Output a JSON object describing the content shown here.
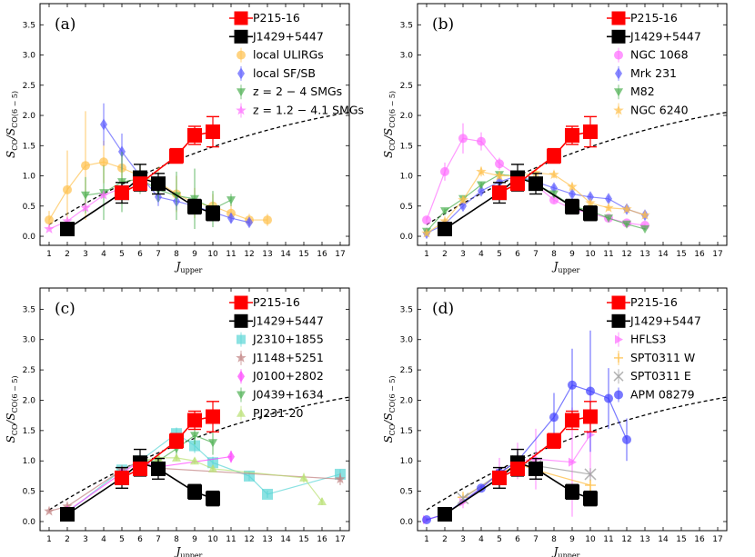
{
  "figure": {
    "xlabel": "J",
    "xlabel_sub": "upper",
    "ylabel": "S",
    "ylabel_sub": "CO",
    "ylabel_mid": "/S",
    "ylabel_sub2": "CO(6 − 5)"
  },
  "chart_data": [
    {
      "type": "line",
      "panel_label": "(a)",
      "xlim": [
        0.5,
        17.5
      ],
      "ylim": [
        -0.15,
        3.85
      ],
      "xticks": [
        1,
        2,
        3,
        4,
        5,
        6,
        7,
        8,
        9,
        10,
        11,
        12,
        13,
        14,
        15,
        16,
        17
      ],
      "yticks": [
        0.0,
        0.5,
        1.0,
        1.5,
        2.0,
        2.5,
        3.0,
        3.5
      ],
      "model_curve": {
        "name": "thermalized",
        "style": "dashed"
      },
      "series": [
        {
          "name": "P215-16",
          "marker": "square",
          "color": "#ff0000",
          "size": 8,
          "line": true,
          "x": [
            5,
            6,
            8,
            9,
            10
          ],
          "y": [
            0.72,
            0.87,
            1.33,
            1.67,
            1.73
          ],
          "err": [
            0.1,
            0.08,
            0.12,
            0.15,
            0.25
          ]
        },
        {
          "name": "J1429+5447",
          "marker": "square",
          "color": "#000000",
          "size": 8,
          "line": true,
          "x": [
            2,
            5,
            6,
            7,
            9,
            10
          ],
          "y": [
            0.12,
            0.72,
            0.97,
            0.87,
            0.49,
            0.38
          ],
          "err": [
            0.05,
            0.17,
            0.22,
            0.17,
            0.12,
            0.12
          ]
        },
        {
          "name": "local ULIRGs",
          "marker": "circle",
          "color": "#ffc04c",
          "size": 5,
          "alpha": 0.7,
          "line": true,
          "x": [
            1,
            2,
            3,
            4,
            5,
            6,
            7,
            8,
            9,
            10,
            11,
            12,
            13
          ],
          "y": [
            0.27,
            0.77,
            1.17,
            1.23,
            1.13,
            1.0,
            0.9,
            0.7,
            0.55,
            0.5,
            0.38,
            0.27,
            0.27
          ],
          "err": [
            0.15,
            0.65,
            0.9,
            0.35,
            0.25,
            0.15,
            0.25,
            0.3,
            0.25,
            0.2,
            0.15,
            0.1,
            0.1
          ]
        },
        {
          "name": "local SF/SB",
          "marker": "diamond",
          "color": "#5a5aff",
          "size": 5,
          "alpha": 0.7,
          "line": true,
          "x": [
            4,
            5,
            6,
            7,
            8,
            9,
            10,
            11,
            12
          ],
          "y": [
            1.85,
            1.4,
            1.0,
            0.65,
            0.58,
            0.5,
            0.4,
            0.3,
            0.23
          ],
          "err": [
            0.35,
            0.3,
            0.1,
            0.15,
            0.15,
            0.1,
            0.1,
            0.08,
            0.06
          ]
        },
        {
          "name": "z = 2 − 4 SMGs",
          "marker": "triangle-down",
          "color": "#4caf50",
          "size": 5,
          "alpha": 0.7,
          "line": true,
          "x": [
            3,
            4,
            5,
            6,
            7,
            8,
            9,
            10,
            11
          ],
          "y": [
            0.68,
            0.72,
            0.9,
            0.95,
            0.77,
            0.67,
            0.62,
            0.45,
            0.6
          ],
          "err": [
            0.3,
            0.45,
            0.5,
            0.25,
            0.2,
            0.4,
            0.5,
            0.3,
            0.1
          ]
        },
        {
          "name": "z = 1.2 − 4.1 SMGs",
          "marker": "star",
          "color": "#ff6cff",
          "size": 5,
          "alpha": 0.7,
          "line": true,
          "x": [
            1,
            2,
            3,
            4,
            5
          ],
          "y": [
            0.12,
            0.25,
            0.47,
            0.68,
            0.8
          ],
          "err": [
            0,
            0,
            0,
            0,
            0
          ]
        }
      ]
    },
    {
      "type": "line",
      "panel_label": "(b)",
      "xlim": [
        0.5,
        17.5
      ],
      "ylim": [
        -0.15,
        3.85
      ],
      "xticks": [
        1,
        2,
        3,
        4,
        5,
        6,
        7,
        8,
        9,
        10,
        11,
        12,
        13,
        14,
        15,
        16,
        17
      ],
      "yticks": [
        0.0,
        0.5,
        1.0,
        1.5,
        2.0,
        2.5,
        3.0,
        3.5
      ],
      "model_curve": {
        "name": "thermalized",
        "style": "dashed"
      },
      "series": [
        {
          "name": "P215-16",
          "marker": "square",
          "color": "#ff0000",
          "size": 8,
          "line": true,
          "x": [
            5,
            6,
            8,
            9,
            10
          ],
          "y": [
            0.72,
            0.87,
            1.33,
            1.67,
            1.73
          ],
          "err": [
            0.1,
            0.08,
            0.12,
            0.15,
            0.25
          ]
        },
        {
          "name": "J1429+5447",
          "marker": "square",
          "color": "#000000",
          "size": 8,
          "line": true,
          "x": [
            2,
            5,
            6,
            7,
            9,
            10
          ],
          "y": [
            0.12,
            0.72,
            0.97,
            0.87,
            0.49,
            0.38
          ],
          "err": [
            0.05,
            0.17,
            0.22,
            0.17,
            0.12,
            0.12
          ]
        },
        {
          "name": "NGC 1068",
          "marker": "circle",
          "color": "#ff6cff",
          "size": 5,
          "alpha": 0.7,
          "line": true,
          "x": [
            1,
            2,
            3,
            4,
            5,
            6,
            7,
            8,
            9,
            10,
            11,
            12,
            13
          ],
          "y": [
            0.27,
            1.07,
            1.62,
            1.57,
            1.2,
            1.0,
            0.85,
            0.6,
            0.45,
            0.38,
            0.3,
            0.22,
            0.18
          ],
          "err": [
            0.05,
            0.15,
            0.25,
            0.15,
            0.1,
            0.05,
            0.05,
            0.05,
            0.04,
            0.04,
            0.04,
            0.03,
            0.03
          ]
        },
        {
          "name": "Mrk 231",
          "marker": "diamond",
          "color": "#5a5aff",
          "size": 5,
          "alpha": 0.7,
          "line": true,
          "x": [
            1,
            2,
            3,
            4,
            5,
            6,
            7,
            8,
            9,
            10,
            11,
            12,
            13
          ],
          "y": [
            0.05,
            0.2,
            0.5,
            0.75,
            0.9,
            1.0,
            0.9,
            0.8,
            0.7,
            0.65,
            0.62,
            0.45,
            0.35
          ],
          "err": [
            0.02,
            0.03,
            0.05,
            0.05,
            0.05,
            0.05,
            0.05,
            0.05,
            0.05,
            0.05,
            0.05,
            0.05,
            0.05
          ]
        },
        {
          "name": "M82",
          "marker": "triangle-down",
          "color": "#4caf50",
          "size": 5,
          "alpha": 0.7,
          "line": true,
          "x": [
            1,
            2,
            3,
            4,
            5,
            6,
            7,
            8,
            9,
            10,
            11,
            12,
            13
          ],
          "y": [
            0.08,
            0.42,
            0.62,
            0.85,
            1.02,
            1.0,
            0.87,
            0.7,
            0.5,
            0.42,
            0.3,
            0.2,
            0.12
          ],
          "err": [
            0.02,
            0.04,
            0.05,
            0.05,
            0.05,
            0.05,
            0.05,
            0.05,
            0.04,
            0.04,
            0.03,
            0.03,
            0.02
          ]
        },
        {
          "name": "NGC 6240",
          "marker": "star",
          "color": "#ffc04c",
          "size": 5,
          "alpha": 0.7,
          "line": true,
          "x": [
            1,
            2,
            3,
            4,
            5,
            6,
            7,
            8,
            9,
            10,
            11,
            12,
            13
          ],
          "y": [
            0.05,
            0.25,
            0.6,
            1.07,
            1.0,
            1.0,
            1.05,
            1.02,
            0.82,
            0.55,
            0.47,
            0.45,
            0.35
          ],
          "err": [
            0.02,
            0.04,
            0.06,
            0.08,
            0.06,
            0.05,
            0.06,
            0.06,
            0.06,
            0.05,
            0.05,
            0.05,
            0.05
          ]
        }
      ]
    },
    {
      "type": "line",
      "panel_label": "(c)",
      "xlim": [
        0.5,
        17.5
      ],
      "ylim": [
        -0.15,
        3.85
      ],
      "xticks": [
        1,
        2,
        3,
        4,
        5,
        6,
        7,
        8,
        9,
        10,
        11,
        12,
        13,
        14,
        15,
        16,
        17
      ],
      "yticks": [
        0.0,
        0.5,
        1.0,
        1.5,
        2.0,
        2.5,
        3.0,
        3.5
      ],
      "model_curve": {
        "name": "thermalized",
        "style": "dashed"
      },
      "series": [
        {
          "name": "P215-16",
          "marker": "square",
          "color": "#ff0000",
          "size": 8,
          "line": true,
          "x": [
            5,
            6,
            8,
            9,
            10
          ],
          "y": [
            0.72,
            0.87,
            1.33,
            1.67,
            1.73
          ],
          "err": [
            0.1,
            0.08,
            0.12,
            0.15,
            0.25
          ]
        },
        {
          "name": "J1429+5447",
          "marker": "square",
          "color": "#000000",
          "size": 8,
          "line": true,
          "x": [
            2,
            5,
            6,
            7,
            9,
            10
          ],
          "y": [
            0.12,
            0.72,
            0.97,
            0.87,
            0.49,
            0.38
          ],
          "err": [
            0.05,
            0.17,
            0.22,
            0.17,
            0.12,
            0.12
          ]
        },
        {
          "name": "J2310+1855",
          "marker": "square",
          "color": "#5ad6d6",
          "size": 6,
          "alpha": 0.7,
          "line": true,
          "x": [
            2,
            5,
            6,
            8,
            9,
            10,
            12,
            13,
            17
          ],
          "y": [
            0.15,
            0.85,
            1.0,
            1.45,
            1.25,
            0.97,
            0.75,
            0.45,
            0.78
          ],
          "err": [
            0.03,
            0.08,
            0.05,
            0.1,
            0.12,
            0.1,
            0.08,
            0.06,
            0.08
          ]
        },
        {
          "name": "J1148+5251",
          "marker": "star",
          "color": "#c08080",
          "size": 5,
          "alpha": 0.7,
          "line": true,
          "x": [
            1,
            2,
            5,
            6,
            7,
            17
          ],
          "y": [
            0.17,
            0.25,
            0.85,
            1.0,
            0.88,
            0.7
          ],
          "err": [
            0.02,
            0.03,
            0.05,
            0.05,
            0.05,
            0.1
          ]
        },
        {
          "name": "J0100+2802",
          "marker": "diamond",
          "color": "#ff40ff",
          "size": 5,
          "alpha": 0.7,
          "line": true,
          "x": [
            2,
            5,
            6,
            7,
            11
          ],
          "y": [
            0.17,
            0.8,
            1.0,
            0.9,
            1.07
          ],
          "err": [
            0.03,
            0.08,
            0.05,
            0.08,
            0.1
          ]
        },
        {
          "name": "J0439+1634",
          "marker": "triangle-down",
          "color": "#4caf50",
          "size": 5,
          "alpha": 0.7,
          "line": true,
          "x": [
            6,
            7,
            8,
            9,
            10
          ],
          "y": [
            1.0,
            1.0,
            1.2,
            1.42,
            1.3
          ],
          "err": [
            0.1,
            0.1,
            0.15,
            0.15,
            0.2
          ]
        },
        {
          "name": "PJ231-20",
          "marker": "triangle-up",
          "color": "#b8e070",
          "size": 5,
          "alpha": 0.7,
          "line": true,
          "x": [
            6,
            7,
            8,
            9,
            10,
            15,
            16
          ],
          "y": [
            1.0,
            1.05,
            1.05,
            1.0,
            0.87,
            0.72,
            0.33
          ],
          "err": [
            0.05,
            0.05,
            0.05,
            0.05,
            0.05,
            0.08,
            0.06
          ]
        }
      ]
    },
    {
      "type": "line",
      "panel_label": "(d)",
      "xlim": [
        0.5,
        17.5
      ],
      "ylim": [
        -0.15,
        3.85
      ],
      "xticks": [
        1,
        2,
        3,
        4,
        5,
        6,
        7,
        8,
        9,
        10,
        11,
        12,
        13,
        14,
        15,
        16,
        17
      ],
      "yticks": [
        0.0,
        0.5,
        1.0,
        1.5,
        2.0,
        2.5,
        3.0,
        3.5
      ],
      "model_curve": {
        "name": "thermalized",
        "style": "dashed"
      },
      "series": [
        {
          "name": "P215-16",
          "marker": "square",
          "color": "#ff0000",
          "size": 8,
          "line": true,
          "x": [
            5,
            6,
            8,
            9,
            10
          ],
          "y": [
            0.72,
            0.87,
            1.33,
            1.67,
            1.73
          ],
          "err": [
            0.1,
            0.08,
            0.12,
            0.15,
            0.25
          ]
        },
        {
          "name": "J1429+5447",
          "marker": "square",
          "color": "#000000",
          "size": 8,
          "line": true,
          "x": [
            2,
            5,
            6,
            7,
            9,
            10
          ],
          "y": [
            0.12,
            0.72,
            0.97,
            0.87,
            0.49,
            0.38
          ],
          "err": [
            0.05,
            0.17,
            0.22,
            0.17,
            0.12,
            0.12
          ]
        },
        {
          "name": "HFLS3",
          "marker": "triangle-right",
          "color": "#ff6cff",
          "size": 5,
          "alpha": 0.7,
          "line": true,
          "x": [
            1,
            2,
            3,
            5,
            6,
            7,
            9,
            10
          ],
          "y": [
            0.03,
            0.12,
            0.32,
            0.8,
            1.0,
            1.03,
            0.98,
            1.43
          ],
          "err": [
            0.02,
            0.03,
            0.1,
            0.25,
            0.3,
            0.5,
            0.9,
            0.7
          ]
        },
        {
          "name": "SPT0311 W",
          "marker": "plus",
          "color": "#ffc04c",
          "size": 6,
          "alpha": 0.8,
          "line": true,
          "x": [
            3,
            6,
            7,
            10
          ],
          "y": [
            0.4,
            0.95,
            0.85,
            0.6
          ],
          "err": [
            0.05,
            0.15,
            0.12,
            0.1
          ]
        },
        {
          "name": "SPT0311 E",
          "marker": "x",
          "color": "#a0a0a0",
          "size": 6,
          "alpha": 0.8,
          "line": true,
          "x": [
            3,
            6,
            7,
            10
          ],
          "y": [
            0.38,
            1.0,
            0.92,
            0.78
          ],
          "err": [
            0.05,
            0.15,
            0.12,
            0.1
          ]
        },
        {
          "name": "APM 08279",
          "marker": "circle",
          "color": "#4040ff",
          "size": 5,
          "alpha": 0.7,
          "line": true,
          "x": [
            1,
            2,
            4,
            5,
            6,
            8,
            9,
            10,
            11,
            12
          ],
          "y": [
            0.03,
            0.12,
            0.55,
            0.8,
            1.0,
            1.72,
            2.25,
            2.15,
            2.03,
            1.35
          ],
          "err": [
            0.02,
            0.03,
            0.05,
            0.1,
            0.15,
            0.4,
            0.6,
            1.0,
            0.5,
            0.35
          ]
        }
      ]
    }
  ]
}
